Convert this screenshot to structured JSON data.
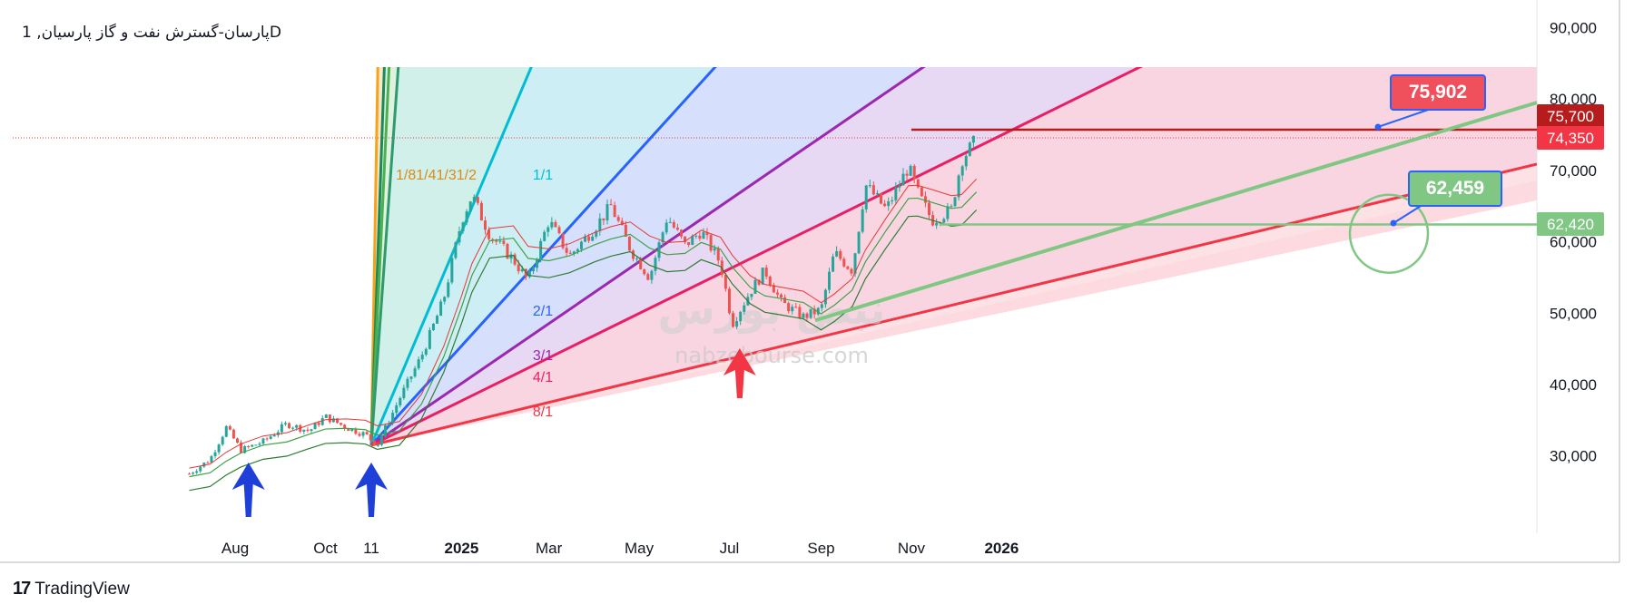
{
  "symbol": {
    "title": "پارسان-گسترش نفت و گاز پارسیان, 1D"
  },
  "branding": {
    "name": "TradingView",
    "logo_text": "17"
  },
  "watermark": {
    "text": "nabzebourse.com",
    "logo_text": "نبض بورس"
  },
  "colors": {
    "up": "#26a69a",
    "down": "#ef5350",
    "fan_orange": "#f7a21b",
    "fan_green_dark": "#1b8a5a",
    "fan_green": "#4caf50",
    "fan_teal": "#2e9a6e",
    "fan_cyan": "#00bcd4",
    "fan_blue": "#2962ff",
    "fan_purple": "#9c27b0",
    "fan_pink": "#e91e63",
    "fan_red": "#f23645",
    "trend_green": "#81c784",
    "hline": "#b71c1c",
    "arrow_blue": "#1e40d8",
    "arrow_red": "#f23645"
  },
  "callouts": {
    "top": "75,902",
    "mid": "62,459"
  },
  "chart_data": {
    "type": "candlestick",
    "y_axis": {
      "min": 20000,
      "max": 90000,
      "ticks": [
        30000,
        40000,
        50000,
        60000,
        70000,
        80000,
        90000
      ],
      "tick_labels": [
        "30,000",
        "40,000",
        "50,000",
        "60,000",
        "70,000",
        "80,000",
        "90,000"
      ]
    },
    "x_axis": {
      "labels": [
        {
          "text": "Aug",
          "date": "2024-08-01",
          "bold": false
        },
        {
          "text": "Oct",
          "date": "2024-10-01",
          "bold": false
        },
        {
          "text": "11",
          "date": "2024-11-01",
          "bold": false
        },
        {
          "text": "2025",
          "date": "2025-01-01",
          "bold": true
        },
        {
          "text": "Mar",
          "date": "2025-03-01",
          "bold": false
        },
        {
          "text": "May",
          "date": "2025-05-01",
          "bold": false
        },
        {
          "text": "Jul",
          "date": "2025-07-01",
          "bold": false
        },
        {
          "text": "Sep",
          "date": "2025-09-01",
          "bold": false
        },
        {
          "text": "Nov",
          "date": "2025-11-01",
          "bold": false
        },
        {
          "text": "2026",
          "date": "2026-01-01",
          "bold": true
        }
      ]
    },
    "price_tags": [
      {
        "text": "75,700",
        "value": 75700,
        "color": "#b71c1c"
      },
      {
        "text": "74,350",
        "value": 74350,
        "color": "#f23645"
      },
      {
        "text": "62,420",
        "value": 62420,
        "color": "#81c784"
      }
    ],
    "close_path": [
      [
        "2024-07-01",
        27500
      ],
      [
        "2024-07-15",
        29500
      ],
      [
        "2024-07-26",
        34000
      ],
      [
        "2024-08-05",
        30800
      ],
      [
        "2024-08-20",
        32000
      ],
      [
        "2024-09-05",
        34500
      ],
      [
        "2024-09-20",
        33500
      ],
      [
        "2024-10-01",
        35500
      ],
      [
        "2024-10-15",
        34000
      ],
      [
        "2024-10-28",
        33000
      ],
      [
        "2024-11-05",
        31500
      ],
      [
        "2024-11-20",
        38000
      ],
      [
        "2024-12-05",
        44000
      ],
      [
        "2024-12-20",
        52000
      ],
      [
        "2025-01-01",
        63000
      ],
      [
        "2025-01-08",
        66500
      ],
      [
        "2025-01-20",
        61000
      ],
      [
        "2025-02-05",
        57500
      ],
      [
        "2025-02-15",
        54500
      ],
      [
        "2025-03-01",
        63000
      ],
      [
        "2025-03-15",
        58000
      ],
      [
        "2025-04-01",
        62000
      ],
      [
        "2025-04-12",
        65000
      ],
      [
        "2025-04-25",
        59000
      ],
      [
        "2025-05-08",
        55000
      ],
      [
        "2025-05-20",
        63500
      ],
      [
        "2025-06-01",
        59500
      ],
      [
        "2025-06-12",
        61500
      ],
      [
        "2025-06-25",
        57000
      ],
      [
        "2025-07-03",
        48500
      ],
      [
        "2025-07-15",
        53000
      ],
      [
        "2025-07-25",
        56000
      ],
      [
        "2025-08-05",
        51500
      ],
      [
        "2025-08-20",
        49500
      ],
      [
        "2025-09-01",
        50500
      ],
      [
        "2025-09-10",
        58500
      ],
      [
        "2025-09-22",
        56000
      ],
      [
        "2025-10-01",
        68000
      ],
      [
        "2025-10-15",
        64500
      ],
      [
        "2025-10-30",
        70500
      ],
      [
        "2025-11-05",
        67000
      ],
      [
        "2025-11-15",
        63000
      ],
      [
        "2025-11-28",
        64500
      ],
      [
        "2025-12-05",
        71500
      ],
      [
        "2025-12-15",
        74350
      ]
    ],
    "gann_fan": {
      "origin": {
        "date": "2024-11-01",
        "value": 31500
      },
      "lines": [
        {
          "label": "1/8",
          "slope_per_day": 12000,
          "color": "#f7a21b"
        },
        {
          "label": "1/4",
          "slope_per_day": 6000,
          "color": "#1b8a5a"
        },
        {
          "label": "1/3",
          "slope_per_day": 4400,
          "color": "#4caf50"
        },
        {
          "label": "1/2",
          "slope_per_day": 2900,
          "color": "#2e9a6e"
        },
        {
          "label": "1/1",
          "slope_per_day": 490,
          "color": "#00bcd4"
        },
        {
          "label": "2/1",
          "slope_per_day": 228,
          "color": "#2962ff"
        },
        {
          "label": "3/1",
          "slope_per_day": 142,
          "color": "#9c27b0"
        },
        {
          "label": "4/1",
          "slope_per_day": 102,
          "color": "#e91e63"
        },
        {
          "label": "8/1",
          "slope_per_day": 50,
          "color": "#f23645"
        }
      ],
      "label_text": "1/81/41/31/2"
    },
    "annotations": [
      {
        "type": "horizontal_segment",
        "from": "2025-11-01",
        "to": "2026-03-15",
        "value": 75700,
        "color": "#b71c1c"
      },
      {
        "type": "horizontal_segment",
        "from": "2025-11-20",
        "to": "2026-03-15",
        "value": 62420,
        "color": "#81c784"
      },
      {
        "type": "trend_line",
        "from": [
          "2025-08-28",
          49000
        ],
        "to": [
          "2026-03-15",
          79500
        ],
        "color": "#81c784"
      },
      {
        "type": "callout",
        "text": "75,902",
        "value": 75902,
        "color": "#f04f5c"
      },
      {
        "type": "callout",
        "text": "62,459",
        "value": 62459,
        "color": "#81c784"
      },
      {
        "type": "circle",
        "at": [
          "2026-01-10",
          62400
        ]
      },
      {
        "type": "arrow_up",
        "date": "2024-08-10",
        "color": "#1e40d8"
      },
      {
        "type": "arrow_up",
        "date": "2024-11-01",
        "color": "#1e40d8"
      },
      {
        "type": "arrow_up",
        "date": "2025-07-08",
        "color": "#f23645"
      }
    ]
  }
}
